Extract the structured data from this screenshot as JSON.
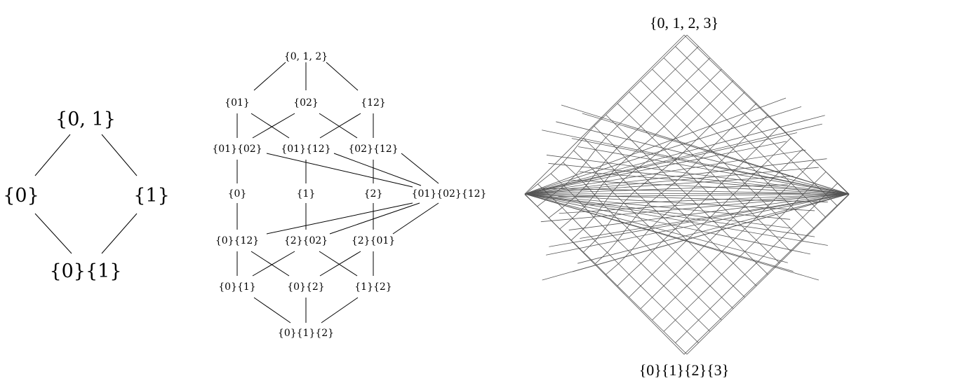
{
  "diagram_n2": {
    "top": "{0, 1}",
    "left": "{0}",
    "right": "{1}",
    "bottom": "{0}{1}"
  },
  "diagram_n3": {
    "nodes": [
      "{0, 1, 2}",
      "{01}",
      "{02}",
      "{12}",
      "{01}{02}",
      "{01}{12}",
      "{02}{12}",
      "{0}",
      "{1}",
      "{2}",
      "{01}{02}{12}",
      "{0}{12}",
      "{2}{02}",
      "{2}{01}",
      "{0}{1}",
      "{0}{2}",
      "{1}{2}",
      "{0}{1}{2}"
    ]
  },
  "diagram_n4": {
    "top": "{0, 1, 2, 3}",
    "bottom": "{0}{1}{2}{3}"
  }
}
